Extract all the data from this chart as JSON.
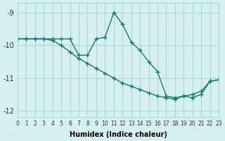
{
  "xlabel": "Humidex (Indice chaleur)",
  "ylabel": "",
  "background_color": "#d6f0f0",
  "line_color": "#1a7a6e",
  "grid_color": "#b0d8d8",
  "xlim": [
    0,
    23
  ],
  "ylim": [
    -12.2,
    -8.7
  ],
  "yticks": [
    -12,
    -11,
    -10,
    -9
  ],
  "xticks": [
    0,
    1,
    2,
    3,
    4,
    5,
    6,
    7,
    8,
    9,
    10,
    11,
    12,
    13,
    14,
    15,
    16,
    17,
    18,
    19,
    20,
    21,
    22,
    23
  ],
  "line1_x": [
    0,
    1,
    2,
    3,
    4,
    5,
    6,
    7,
    8,
    9,
    10,
    11,
    12,
    13,
    14,
    15,
    16,
    17,
    18,
    19,
    20,
    21,
    22,
    23
  ],
  "line1_y": [
    -9.8,
    -9.8,
    -9.8,
    -9.8,
    -9.8,
    -9.8,
    -9.8,
    -10.3,
    -10.3,
    -9.8,
    -9.75,
    -9.0,
    -9.35,
    -9.9,
    -10.15,
    -10.5,
    -10.8,
    -11.55,
    -11.6,
    -11.55,
    -11.6,
    -11.5,
    -11.1,
    -11.05
  ],
  "line2_x": [
    0,
    1,
    2,
    3,
    4,
    5,
    6,
    7,
    8,
    9,
    10,
    11,
    12,
    13,
    14,
    15,
    16,
    17,
    18,
    19,
    20,
    21,
    22,
    23
  ],
  "line2_y": [
    -9.8,
    -9.8,
    -9.8,
    -9.8,
    -9.85,
    -10.0,
    -10.2,
    -10.4,
    -10.55,
    -10.7,
    -10.85,
    -11.0,
    -11.15,
    -11.25,
    -11.35,
    -11.45,
    -11.55,
    -11.6,
    -11.65,
    -11.55,
    -11.5,
    -11.4,
    -11.1,
    -11.05
  ]
}
